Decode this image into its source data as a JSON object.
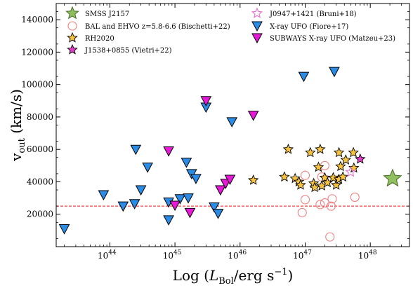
{
  "chart_data": {
    "type": "scatter",
    "x_scale": "log",
    "xlabel_parts": [
      "Log (",
      "L",
      "Bol",
      "/erg s",
      "−1",
      ")"
    ],
    "ylabel_parts": [
      "v",
      "out",
      " (km/s)"
    ],
    "xlim": [
      1.5e+43,
      4e+48
    ],
    "ylim": [
      0,
      150000
    ],
    "x_ticks": [
      {
        "value": 1e+44,
        "base": "10",
        "exp": "44"
      },
      {
        "value": 1e+45,
        "base": "10",
        "exp": "45"
      },
      {
        "value": 1e+46,
        "base": "10",
        "exp": "46"
      },
      {
        "value": 1e+47,
        "base": "10",
        "exp": "47"
      },
      {
        "value": 1e+48,
        "base": "10",
        "exp": "48"
      }
    ],
    "y_ticks": [
      20000,
      40000,
      60000,
      80000,
      100000,
      120000,
      140000
    ],
    "y_tick_labels": [
      "20000",
      "40000",
      "60000",
      "80000",
      "100000",
      "120000",
      "140000"
    ],
    "reference_line": {
      "y": 25000,
      "color": "#e31a1c",
      "style": "dashed"
    },
    "legend_placement": "top",
    "series": [
      {
        "name": "SMSS J2157",
        "marker": "star-large",
        "fill": "#8fbf5f",
        "stroke": "#4a6a2a",
        "points": [
          [
            2.2e+48,
            42000
          ]
        ]
      },
      {
        "name": "BAL and EHVO z=5.8-6.6 (Bischetti+22)",
        "marker": "circle-open",
        "fill": "none",
        "stroke": "#f08080",
        "points": [
          [
            1e+47,
            44000
          ],
          [
            1.8e+47,
            43000
          ],
          [
            2e+47,
            50000
          ],
          [
            1e+47,
            29000
          ],
          [
            9e+46,
            21000
          ],
          [
            1.7e+47,
            26000
          ],
          [
            2e+47,
            27000
          ],
          [
            2.5e+47,
            25000
          ],
          [
            2.6e+47,
            29500
          ],
          [
            5.8e+47,
            30500
          ],
          [
            2.4e+47,
            6000
          ]
        ]
      },
      {
        "name": "RH2020",
        "marker": "star",
        "fill": "#f5c242",
        "stroke": "#000000",
        "points": [
          [
            5.5e+46,
            60000
          ],
          [
            1.2e+47,
            58000
          ],
          [
            1.7e+47,
            60000
          ],
          [
            3.3e+47,
            58000
          ],
          [
            5.5e+47,
            58000
          ],
          [
            1.6e+47,
            49000
          ],
          [
            3.5e+47,
            49500
          ],
          [
            4.2e+47,
            53500
          ],
          [
            5.6e+47,
            48500
          ],
          [
            4.8e+46,
            43000
          ],
          [
            7e+46,
            42000
          ],
          [
            8e+46,
            40000
          ],
          [
            8.5e+46,
            38000
          ],
          [
            1.35e+47,
            39000
          ],
          [
            1.4e+47,
            36500
          ],
          [
            1.8e+47,
            37500
          ],
          [
            2e+47,
            42500
          ],
          [
            2.2e+47,
            39500
          ],
          [
            2.7e+47,
            42500
          ],
          [
            3e+47,
            38000
          ],
          [
            3.3e+47,
            41500
          ],
          [
            3.8e+47,
            43000
          ],
          [
            1.6e+46,
            41000
          ]
        ]
      },
      {
        "name": "J1538+0855 (Vietri+22)",
        "marker": "star",
        "fill": "#e040c8",
        "stroke": "#000000",
        "points": [
          [
            7e+47,
            54000
          ]
        ]
      },
      {
        "name": "J0947+1421 (Bruni+18)",
        "marker": "star-open",
        "fill": "none",
        "stroke": "#e878d0",
        "points": [
          [
            5e+47,
            46000
          ]
        ]
      },
      {
        "name": "X-ray UFO (Fiore+17)",
        "marker": "triangle-down",
        "fill": "#2b8ce6",
        "stroke": "#000000",
        "points": [
          [
            2e+43,
            11000
          ],
          [
            8e+43,
            32000
          ],
          [
            1.6e+44,
            25000
          ],
          [
            2.4e+44,
            26500
          ],
          [
            2.5e+44,
            60000
          ],
          [
            3e+44,
            35000
          ],
          [
            3.8e+44,
            49000
          ],
          [
            8e+44,
            27500
          ],
          [
            8e+44,
            16500
          ],
          [
            1.2e+45,
            29500
          ],
          [
            1.5e+45,
            52000
          ],
          [
            1.6e+45,
            30000
          ],
          [
            1.8e+45,
            45000
          ],
          [
            2.1e+45,
            42000
          ],
          [
            3e+45,
            86000
          ],
          [
            4e+45,
            24500
          ],
          [
            4.6e+45,
            20500
          ],
          [
            7.5e+45,
            77000
          ],
          [
            9.5e+46,
            105000
          ],
          [
            2.8e+47,
            108000
          ]
        ]
      },
      {
        "name": "SUBWAYS X-ray UFO (Matzeu+23)",
        "marker": "triangle-down",
        "fill": "#e818d8",
        "stroke": "#000000",
        "points": [
          [
            8e+44,
            59000
          ],
          [
            1e+45,
            25500
          ],
          [
            1.7e+45,
            21000
          ],
          [
            3e+45,
            90000
          ],
          [
            5e+45,
            35000
          ],
          [
            6e+45,
            39000
          ],
          [
            7e+45,
            41500
          ],
          [
            1.6e+46,
            81000
          ]
        ]
      }
    ]
  }
}
